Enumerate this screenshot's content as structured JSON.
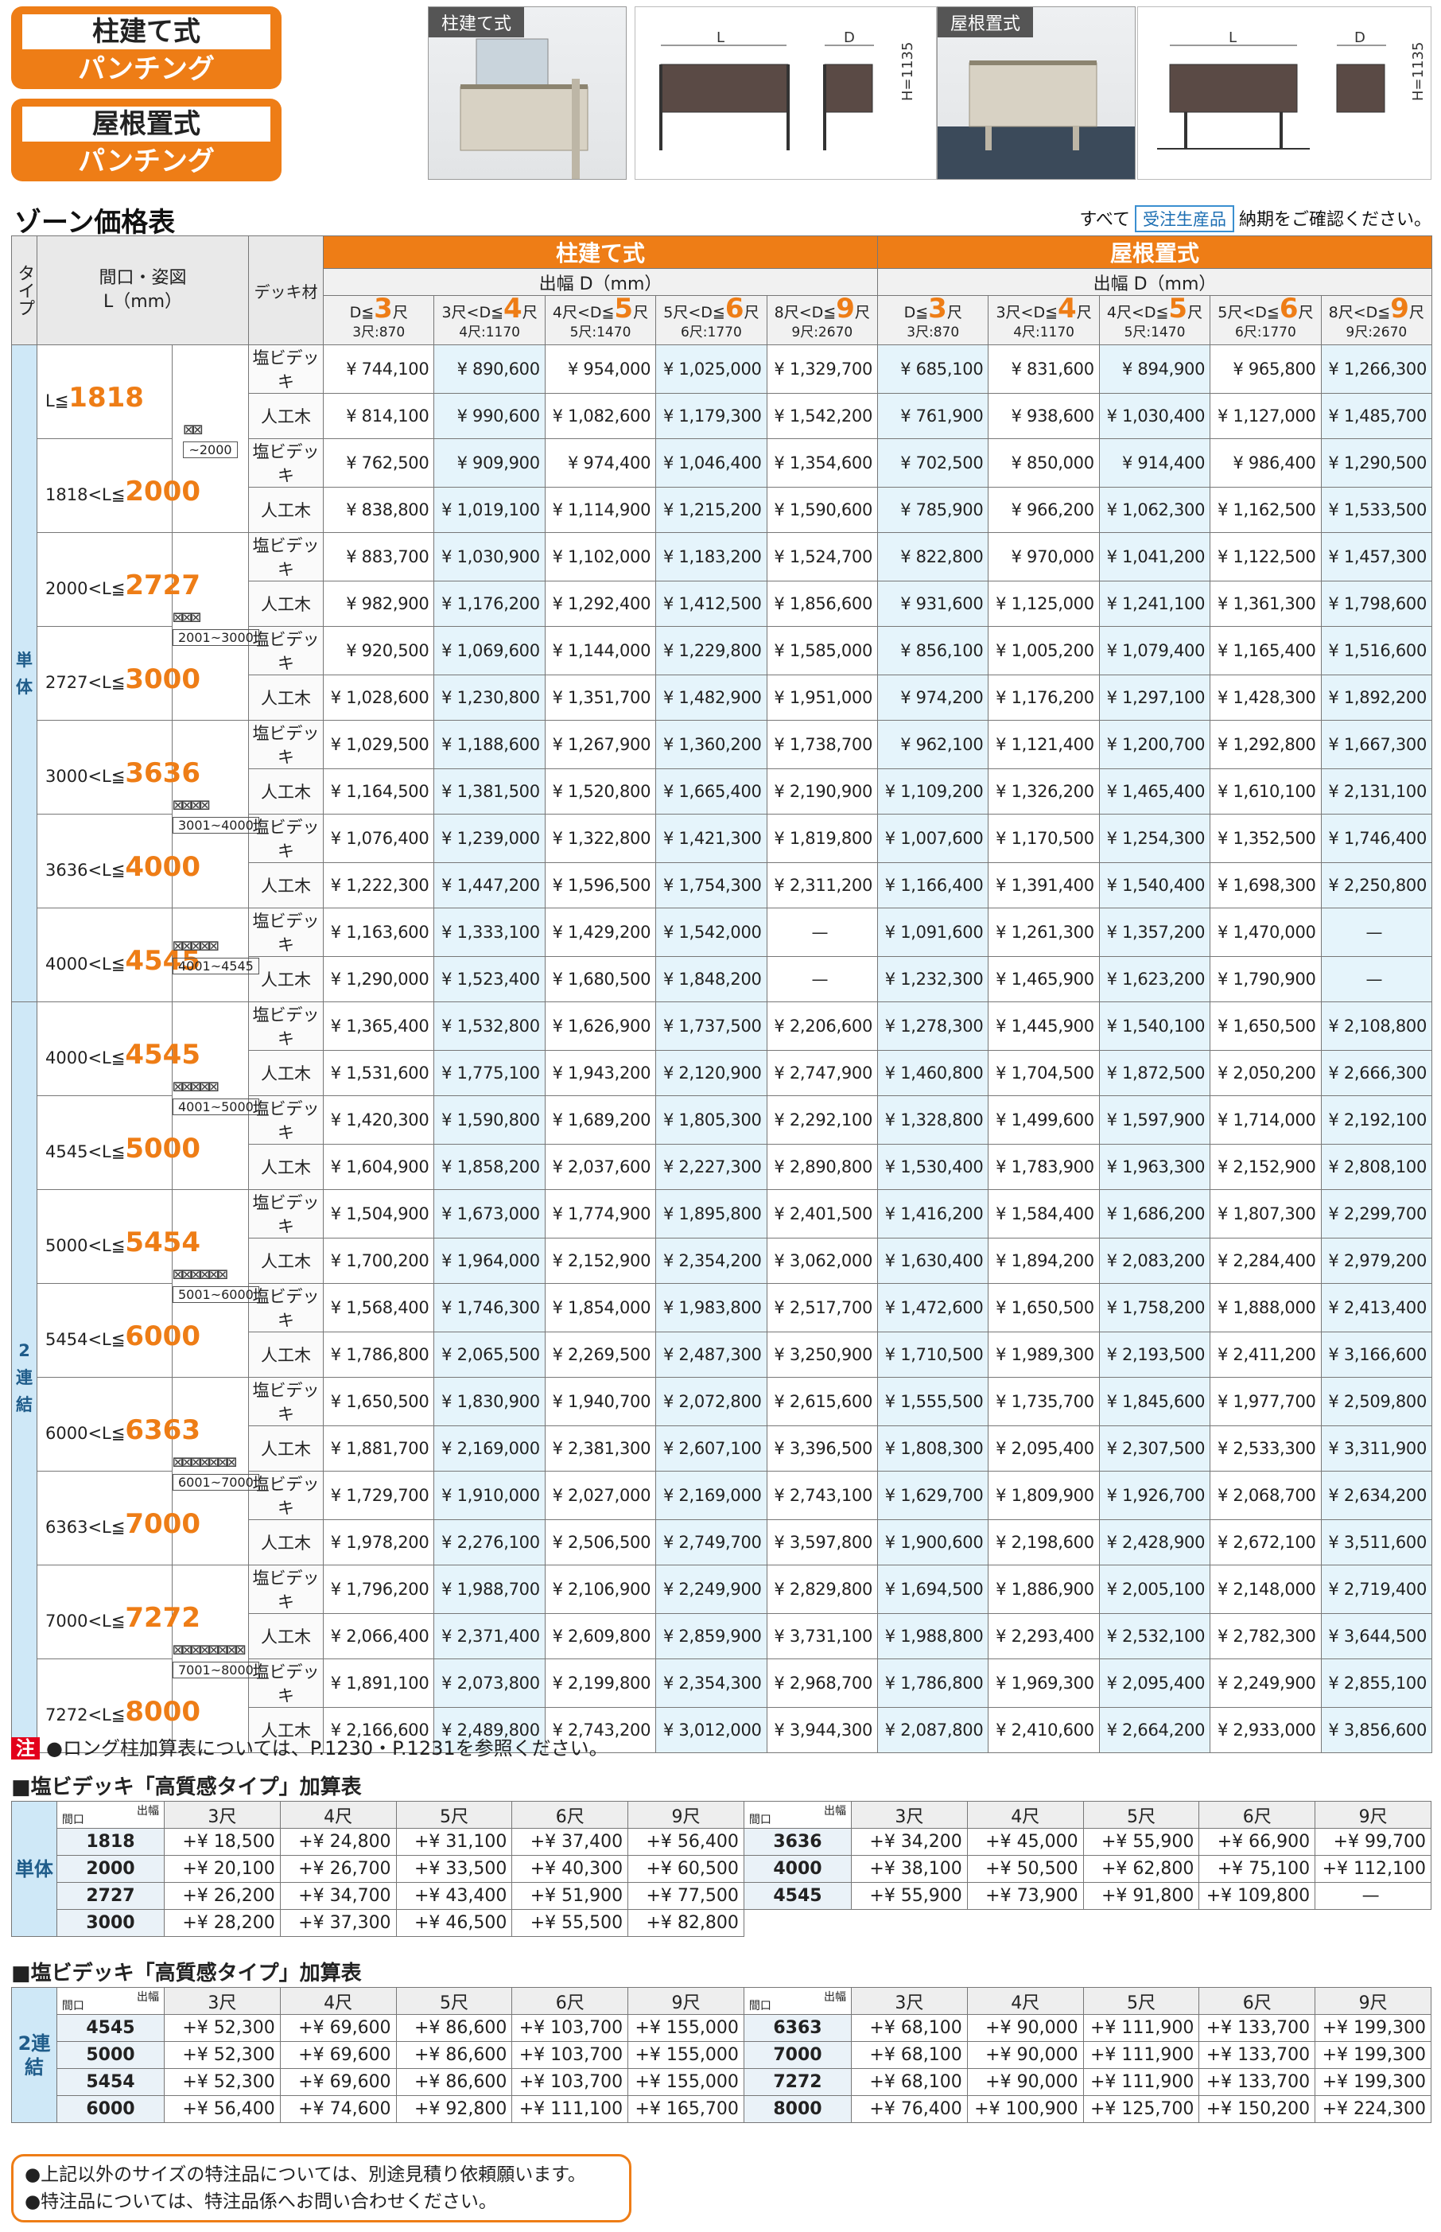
{
  "badges": [
    {
      "l1": "柱建て式",
      "l2": "パンチング"
    },
    {
      "l1": "屋根置式",
      "l2": "パンチング"
    }
  ],
  "photos": [
    {
      "label": "柱建て式"
    },
    {
      "label": "屋根置式"
    }
  ],
  "diagram": {
    "L": "L",
    "D": "D",
    "H": "H=1135"
  },
  "title": "ゾーン価格表",
  "note_top": {
    "pre": "すべて",
    "chip": "受注生産品",
    "post": "納期をご確認ください。"
  },
  "header": {
    "type": "タイプ",
    "span": "間口・姿図",
    "spanunit": "L（mm）",
    "deck": "デッキ材",
    "g1": "柱建て式",
    "g2": "屋根置式",
    "depth": "出幅 D（mm）"
  },
  "dcols": [
    {
      "pre": "D≦",
      "n": "3",
      "post": "尺",
      "sub": "3尺:870"
    },
    {
      "pre": "3尺<D≦",
      "n": "4",
      "post": "尺",
      "sub": "4尺:1170"
    },
    {
      "pre": "4尺<D≦",
      "n": "5",
      "post": "尺",
      "sub": "5尺:1470"
    },
    {
      "pre": "5尺<D≦",
      "n": "6",
      "post": "尺",
      "sub": "6尺:1770"
    },
    {
      "pre": "8尺<D≦",
      "n": "9",
      "post": "尺",
      "sub": "9尺:2670"
    }
  ],
  "types": [
    {
      "label": "単体"
    },
    {
      "label": "2連結"
    }
  ],
  "decks": [
    "塩ビデッキ",
    "人工木"
  ],
  "groups": [
    {
      "type": 0,
      "chart": "~2000",
      "n": 2,
      "rows": [
        {
          "pre": "L≦",
          "n": "1818",
          "p": [
            [
              "¥ 744,100",
              "¥ 890,600",
              "¥ 954,000",
              "¥ 1,025,000",
              "¥ 1,329,700",
              "¥ 685,100",
              "¥ 831,600",
              "¥ 894,900",
              "¥ 965,800",
              "¥ 1,266,300"
            ],
            [
              "¥ 814,100",
              "¥ 990,600",
              "¥ 1,082,600",
              "¥ 1,179,300",
              "¥ 1,542,200",
              "¥ 761,900",
              "¥ 938,600",
              "¥ 1,030,400",
              "¥ 1,127,000",
              "¥ 1,485,700"
            ]
          ]
        },
        {
          "pre": "1818<L≦",
          "n": "2000",
          "p": [
            [
              "¥ 762,500",
              "¥ 909,900",
              "¥ 974,400",
              "¥ 1,046,400",
              "¥ 1,354,600",
              "¥ 702,500",
              "¥ 850,000",
              "¥ 914,400",
              "¥ 986,400",
              "¥ 1,290,500"
            ],
            [
              "¥ 838,800",
              "¥ 1,019,100",
              "¥ 1,114,900",
              "¥ 1,215,200",
              "¥ 1,590,600",
              "¥ 785,900",
              "¥ 966,200",
              "¥ 1,062,300",
              "¥ 1,162,500",
              "¥ 1,533,500"
            ]
          ]
        }
      ]
    },
    {
      "type": 0,
      "chart": "2001~3000",
      "n": 3,
      "rows": [
        {
          "pre": "2000<L≦",
          "n": "2727",
          "p": [
            [
              "¥ 883,700",
              "¥ 1,030,900",
              "¥ 1,102,000",
              "¥ 1,183,200",
              "¥ 1,524,700",
              "¥ 822,800",
              "¥ 970,000",
              "¥ 1,041,200",
              "¥ 1,122,500",
              "¥ 1,457,300"
            ],
            [
              "¥ 982,900",
              "¥ 1,176,200",
              "¥ 1,292,400",
              "¥ 1,412,500",
              "¥ 1,856,600",
              "¥ 931,600",
              "¥ 1,125,000",
              "¥ 1,241,100",
              "¥ 1,361,300",
              "¥ 1,798,600"
            ]
          ]
        },
        {
          "pre": "2727<L≦",
          "n": "3000",
          "p": [
            [
              "¥ 920,500",
              "¥ 1,069,600",
              "¥ 1,144,000",
              "¥ 1,229,800",
              "¥ 1,585,000",
              "¥ 856,100",
              "¥ 1,005,200",
              "¥ 1,079,400",
              "¥ 1,165,400",
              "¥ 1,516,600"
            ],
            [
              "¥ 1,028,600",
              "¥ 1,230,800",
              "¥ 1,351,700",
              "¥ 1,482,900",
              "¥ 1,951,000",
              "¥ 974,200",
              "¥ 1,176,200",
              "¥ 1,297,100",
              "¥ 1,428,300",
              "¥ 1,892,200"
            ]
          ]
        }
      ]
    },
    {
      "type": 0,
      "chart": "3001~4000",
      "n": 4,
      "rows": [
        {
          "pre": "3000<L≦",
          "n": "3636",
          "p": [
            [
              "¥ 1,029,500",
              "¥ 1,188,600",
              "¥ 1,267,900",
              "¥ 1,360,200",
              "¥ 1,738,700",
              "¥ 962,100",
              "¥ 1,121,400",
              "¥ 1,200,700",
              "¥ 1,292,800",
              "¥ 1,667,300"
            ],
            [
              "¥ 1,164,500",
              "¥ 1,381,500",
              "¥ 1,520,800",
              "¥ 1,665,400",
              "¥ 2,190,900",
              "¥ 1,109,200",
              "¥ 1,326,200",
              "¥ 1,465,400",
              "¥ 1,610,100",
              "¥ 2,131,100"
            ]
          ]
        },
        {
          "pre": "3636<L≦",
          "n": "4000",
          "p": [
            [
              "¥ 1,076,400",
              "¥ 1,239,000",
              "¥ 1,322,800",
              "¥ 1,421,300",
              "¥ 1,819,800",
              "¥ 1,007,600",
              "¥ 1,170,500",
              "¥ 1,254,300",
              "¥ 1,352,500",
              "¥ 1,746,400"
            ],
            [
              "¥ 1,222,300",
              "¥ 1,447,200",
              "¥ 1,596,500",
              "¥ 1,754,300",
              "¥ 2,311,200",
              "¥ 1,166,400",
              "¥ 1,391,400",
              "¥ 1,540,400",
              "¥ 1,698,300",
              "¥ 2,250,800"
            ]
          ]
        }
      ]
    },
    {
      "type": 0,
      "chart": "4001~4545",
      "n": 5,
      "rows": [
        {
          "pre": "4000<L≦",
          "n": "4545",
          "p": [
            [
              "¥ 1,163,600",
              "¥ 1,333,100",
              "¥ 1,429,200",
              "¥ 1,542,000",
              "—",
              "¥ 1,091,600",
              "¥ 1,261,300",
              "¥ 1,357,200",
              "¥ 1,470,000",
              "—"
            ],
            [
              "¥ 1,290,000",
              "¥ 1,523,400",
              "¥ 1,680,500",
              "¥ 1,848,200",
              "—",
              "¥ 1,232,300",
              "¥ 1,465,900",
              "¥ 1,623,200",
              "¥ 1,790,900",
              "—"
            ]
          ]
        }
      ]
    },
    {
      "type": 1,
      "chart": "4001~5000",
      "n": 5,
      "rows": [
        {
          "pre": "4000<L≦",
          "n": "4545",
          "p": [
            [
              "¥ 1,365,400",
              "¥ 1,532,800",
              "¥ 1,626,900",
              "¥ 1,737,500",
              "¥ 2,206,600",
              "¥ 1,278,300",
              "¥ 1,445,900",
              "¥ 1,540,100",
              "¥ 1,650,500",
              "¥ 2,108,800"
            ],
            [
              "¥ 1,531,600",
              "¥ 1,775,100",
              "¥ 1,943,200",
              "¥ 2,120,900",
              "¥ 2,747,900",
              "¥ 1,460,800",
              "¥ 1,704,500",
              "¥ 1,872,500",
              "¥ 2,050,200",
              "¥ 2,666,300"
            ]
          ]
        },
        {
          "pre": "4545<L≦",
          "n": "5000",
          "p": [
            [
              "¥ 1,420,300",
              "¥ 1,590,800",
              "¥ 1,689,200",
              "¥ 1,805,300",
              "¥ 2,292,100",
              "¥ 1,328,800",
              "¥ 1,499,600",
              "¥ 1,597,900",
              "¥ 1,714,000",
              "¥ 2,192,100"
            ],
            [
              "¥ 1,604,900",
              "¥ 1,858,200",
              "¥ 2,037,600",
              "¥ 2,227,300",
              "¥ 2,890,800",
              "¥ 1,530,400",
              "¥ 1,783,900",
              "¥ 1,963,300",
              "¥ 2,152,900",
              "¥ 2,808,100"
            ]
          ]
        }
      ]
    },
    {
      "type": 1,
      "chart": "5001~6000",
      "n": 6,
      "rows": [
        {
          "pre": "5000<L≦",
          "n": "5454",
          "p": [
            [
              "¥ 1,504,900",
              "¥ 1,673,000",
              "¥ 1,774,900",
              "¥ 1,895,800",
              "¥ 2,401,500",
              "¥ 1,416,200",
              "¥ 1,584,400",
              "¥ 1,686,200",
              "¥ 1,807,300",
              "¥ 2,299,700"
            ],
            [
              "¥ 1,700,200",
              "¥ 1,964,000",
              "¥ 2,152,900",
              "¥ 2,354,200",
              "¥ 3,062,000",
              "¥ 1,630,400",
              "¥ 1,894,200",
              "¥ 2,083,200",
              "¥ 2,284,400",
              "¥ 2,979,200"
            ]
          ]
        },
        {
          "pre": "5454<L≦",
          "n": "6000",
          "p": [
            [
              "¥ 1,568,400",
              "¥ 1,746,300",
              "¥ 1,854,000",
              "¥ 1,983,800",
              "¥ 2,517,700",
              "¥ 1,472,600",
              "¥ 1,650,500",
              "¥ 1,758,200",
              "¥ 1,888,000",
              "¥ 2,413,400"
            ],
            [
              "¥ 1,786,800",
              "¥ 2,065,500",
              "¥ 2,269,500",
              "¥ 2,487,300",
              "¥ 3,250,900",
              "¥ 1,710,500",
              "¥ 1,989,300",
              "¥ 2,193,500",
              "¥ 2,411,200",
              "¥ 3,166,600"
            ]
          ]
        }
      ]
    },
    {
      "type": 1,
      "chart": "6001~7000",
      "n": 7,
      "rows": [
        {
          "pre": "6000<L≦",
          "n": "6363",
          "p": [
            [
              "¥ 1,650,500",
              "¥ 1,830,900",
              "¥ 1,940,700",
              "¥ 2,072,800",
              "¥ 2,615,600",
              "¥ 1,555,500",
              "¥ 1,735,700",
              "¥ 1,845,600",
              "¥ 1,977,700",
              "¥ 2,509,800"
            ],
            [
              "¥ 1,881,700",
              "¥ 2,169,000",
              "¥ 2,381,300",
              "¥ 2,607,100",
              "¥ 3,396,500",
              "¥ 1,808,300",
              "¥ 2,095,400",
              "¥ 2,307,500",
              "¥ 2,533,300",
              "¥ 3,311,900"
            ]
          ]
        },
        {
          "pre": "6363<L≦",
          "n": "7000",
          "p": [
            [
              "¥ 1,729,700",
              "¥ 1,910,000",
              "¥ 2,027,000",
              "¥ 2,169,000",
              "¥ 2,743,100",
              "¥ 1,629,700",
              "¥ 1,809,900",
              "¥ 1,926,700",
              "¥ 2,068,700",
              "¥ 2,634,200"
            ],
            [
              "¥ 1,978,200",
              "¥ 2,276,100",
              "¥ 2,506,500",
              "¥ 2,749,700",
              "¥ 3,597,800",
              "¥ 1,900,600",
              "¥ 2,198,600",
              "¥ 2,428,900",
              "¥ 2,672,100",
              "¥ 3,511,600"
            ]
          ]
        }
      ]
    },
    {
      "type": 1,
      "chart": "7001~8000",
      "n": 8,
      "rows": [
        {
          "pre": "7000<L≦",
          "n": "7272",
          "p": [
            [
              "¥ 1,796,200",
              "¥ 1,988,700",
              "¥ 2,106,900",
              "¥ 2,249,900",
              "¥ 2,829,800",
              "¥ 1,694,500",
              "¥ 1,886,900",
              "¥ 2,005,100",
              "¥ 2,148,000",
              "¥ 2,719,400"
            ],
            [
              "¥ 2,066,400",
              "¥ 2,371,400",
              "¥ 2,609,800",
              "¥ 2,859,900",
              "¥ 3,731,100",
              "¥ 1,988,800",
              "¥ 2,293,400",
              "¥ 2,532,100",
              "¥ 2,782,300",
              "¥ 3,644,500"
            ]
          ]
        },
        {
          "pre": "7272<L≦",
          "n": "8000",
          "p": [
            [
              "¥ 1,891,100",
              "¥ 2,073,800",
              "¥ 2,199,800",
              "¥ 2,354,300",
              "¥ 2,968,700",
              "¥ 1,786,800",
              "¥ 1,969,300",
              "¥ 2,095,400",
              "¥ 2,249,900",
              "¥ 2,855,100"
            ],
            [
              "¥ 2,166,600",
              "¥ 2,489,800",
              "¥ 2,743,200",
              "¥ 3,012,000",
              "¥ 3,944,300",
              "¥ 2,087,800",
              "¥ 2,410,600",
              "¥ 2,664,200",
              "¥ 2,933,000",
              "¥ 3,856,600"
            ]
          ]
        }
      ]
    }
  ],
  "footnote": {
    "tag": "注",
    "text": "●ロング柱加算表については、P.1230・P.1231を参照ください。"
  },
  "add1": {
    "title": "■塩ビデッキ「高質感タイプ」加算表",
    "corner_a": "出幅",
    "corner_b": "間口",
    "cols": [
      "3尺",
      "4尺",
      "5尺",
      "6尺",
      "9尺"
    ],
    "type": "単体",
    "left": [
      [
        "1818",
        "+¥ 18,500",
        "+¥ 24,800",
        "+¥ 31,100",
        "+¥ 37,400",
        "+¥ 56,400"
      ],
      [
        "2000",
        "+¥ 20,100",
        "+¥ 26,700",
        "+¥ 33,500",
        "+¥ 40,300",
        "+¥ 60,500"
      ],
      [
        "2727",
        "+¥ 26,200",
        "+¥ 34,700",
        "+¥ 43,400",
        "+¥ 51,900",
        "+¥ 77,500"
      ],
      [
        "3000",
        "+¥ 28,200",
        "+¥ 37,300",
        "+¥ 46,500",
        "+¥ 55,500",
        "+¥ 82,800"
      ]
    ],
    "right": [
      [
        "3636",
        "+¥ 34,200",
        "+¥ 45,000",
        "+¥ 55,900",
        "+¥ 66,900",
        "+¥ 99,700"
      ],
      [
        "4000",
        "+¥ 38,100",
        "+¥ 50,500",
        "+¥ 62,800",
        "+¥ 75,100",
        "+¥ 112,100"
      ],
      [
        "4545",
        "+¥ 55,900",
        "+¥ 73,900",
        "+¥ 91,800",
        "+¥ 109,800",
        "—"
      ]
    ]
  },
  "add2": {
    "title": "■塩ビデッキ「高質感タイプ」加算表",
    "corner_a": "出幅",
    "corner_b": "間口",
    "cols": [
      "3尺",
      "4尺",
      "5尺",
      "6尺",
      "9尺"
    ],
    "type": "2連結",
    "left": [
      [
        "4545",
        "+¥ 52,300",
        "+¥ 69,600",
        "+¥ 86,600",
        "+¥ 103,700",
        "+¥ 155,000"
      ],
      [
        "5000",
        "+¥ 52,300",
        "+¥ 69,600",
        "+¥ 86,600",
        "+¥ 103,700",
        "+¥ 155,000"
      ],
      [
        "5454",
        "+¥ 52,300",
        "+¥ 69,600",
        "+¥ 86,600",
        "+¥ 103,700",
        "+¥ 155,000"
      ],
      [
        "6000",
        "+¥ 56,400",
        "+¥ 74,600",
        "+¥ 92,800",
        "+¥ 111,100",
        "+¥ 165,700"
      ]
    ],
    "right": [
      [
        "6363",
        "+¥ 68,100",
        "+¥ 90,000",
        "+¥ 111,900",
        "+¥ 133,700",
        "+¥ 199,300"
      ],
      [
        "7000",
        "+¥ 68,100",
        "+¥ 90,000",
        "+¥ 111,900",
        "+¥ 133,700",
        "+¥ 199,300"
      ],
      [
        "7272",
        "+¥ 68,100",
        "+¥ 90,000",
        "+¥ 111,900",
        "+¥ 133,700",
        "+¥ 199,300"
      ],
      [
        "8000",
        "+¥ 76,400",
        "+¥ 100,900",
        "+¥ 125,700",
        "+¥ 150,200",
        "+¥ 224,300"
      ]
    ]
  },
  "bottom_notes": [
    "●上記以外のサイズの特注品については、別途見積り依頼願います。",
    "●特注品については、特注品係へお問い合わせください。"
  ]
}
